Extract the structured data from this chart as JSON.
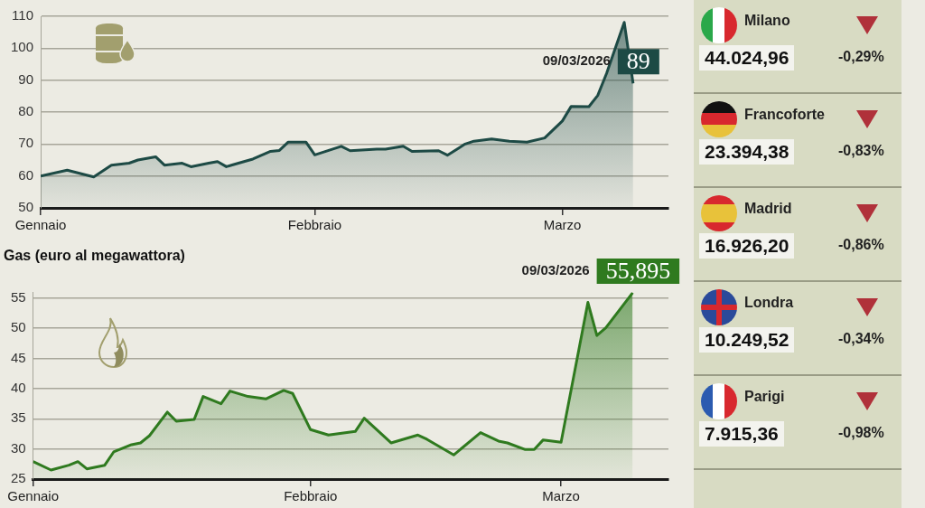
{
  "chart_data": [
    {
      "type": "area",
      "xlim": [
        "--01-01",
        "--03-13"
      ],
      "xticks": [
        {
          "value": "--01-01",
          "label": "Gennaio"
        },
        {
          "value": "--02-01",
          "label": "Febbraio"
        },
        {
          "value": "--03-01",
          "label": "Marzo"
        }
      ],
      "ylim": [
        50,
        110
      ],
      "yticks": [
        50,
        60,
        70,
        80,
        90,
        100,
        110
      ],
      "grid": "y",
      "annotations": [
        "09/03/2026",
        {
          "text": "89",
          "x": "--03-09",
          "y": 89
        }
      ],
      "series": [
        {
          "color": "#1d4a45",
          "x": [
            "--01-01",
            "--01-04",
            "--01-07",
            "--01-09",
            "--01-11",
            "--01-12",
            "--01-14",
            "--01-15",
            "--01-17",
            "--01-18",
            "--01-20",
            "--01-21",
            "--01-22",
            "--01-24",
            "--01-25",
            "--01-27",
            "--01-28",
            "--01-29",
            "--01-31",
            "--02-01",
            "--02-04",
            "--02-05",
            "--02-08",
            "--02-09",
            "--02-11",
            "--02-12",
            "--02-15",
            "--02-16",
            "--02-18",
            "--02-19",
            "--02-21",
            "--02-23",
            "--02-25",
            "--02-27",
            "--03-01",
            "--03-02",
            "--03-04",
            "--03-05",
            "--03-06",
            "--03-08",
            "--03-09"
          ],
          "values": [
            60,
            61.8,
            59.7,
            63.4,
            64,
            65,
            66,
            63.4,
            64,
            62.9,
            64,
            64.5,
            62.9,
            64.5,
            65.3,
            67.7,
            68,
            70.6,
            70.6,
            66.6,
            69.3,
            67.9,
            68.4,
            68.4,
            69.3,
            67.7,
            67.9,
            66.5,
            70,
            70.9,
            71.6,
            70.9,
            70.6,
            71.9,
            77.2,
            81.8,
            81.7,
            85.2,
            92.1,
            108.1,
            89
          ]
        }
      ]
    },
    {
      "type": "area",
      "title": "Gas (euro al megawattora)",
      "xlim": [
        "--01-01",
        "--03-13"
      ],
      "xticks": [
        {
          "value": "--01-01",
          "label": "Gennaio"
        },
        {
          "value": "--02-01",
          "label": "Febbraio"
        },
        {
          "value": "--03-01",
          "label": "Marzo"
        }
      ],
      "ylim": [
        25,
        56
      ],
      "yticks": [
        25,
        30,
        35,
        40,
        45,
        50,
        55
      ],
      "grid": "y",
      "annotations": [
        "09/03/2026",
        {
          "text": "55,895",
          "x": "--03-09",
          "y": 55.895
        }
      ],
      "series": [
        {
          "color": "#2f7a1f",
          "x": [
            "--01-01",
            "--01-03",
            "--01-05",
            "--01-06",
            "--01-07",
            "--01-09",
            "--01-10",
            "--01-12",
            "--01-13",
            "--01-14",
            "--01-16",
            "--01-17",
            "--01-19",
            "--01-20",
            "--01-22",
            "--01-23",
            "--01-25",
            "--01-27",
            "--01-29",
            "--01-30",
            "--02-01",
            "--02-03",
            "--02-06",
            "--02-07",
            "--02-10",
            "--02-13",
            "--02-14",
            "--02-17",
            "--02-20",
            "--02-22",
            "--02-23",
            "--02-25",
            "--02-26",
            "--02-27",
            "--03-01",
            "--03-04",
            "--03-05",
            "--03-06",
            "--03-09"
          ],
          "values": [
            27.9,
            26.5,
            27.3,
            27.9,
            26.7,
            27.3,
            29.5,
            30.7,
            31,
            32.2,
            36.1,
            34.6,
            34.9,
            38.7,
            37.5,
            39.6,
            38.7,
            38.3,
            39.7,
            39.2,
            33.2,
            32.3,
            32.9,
            35.1,
            31,
            32.3,
            31.6,
            29,
            32.7,
            31.3,
            31,
            29.9,
            29.9,
            31.5,
            31.1,
            54.3,
            48.8,
            50.1,
            55.895
          ]
        }
      ]
    },
    {
      "type": "other",
      "annotations": [
        "Milano",
        "44.024,96",
        "-0,29%",
        "Francoforte",
        "23.394,38",
        "-0,83%",
        "Madrid",
        "16.926,20",
        "-0,86%",
        "Londra",
        "10.249,52",
        "-0,34%",
        "Parigi",
        "7.915,36",
        "-0,98%"
      ]
    }
  ]
}
